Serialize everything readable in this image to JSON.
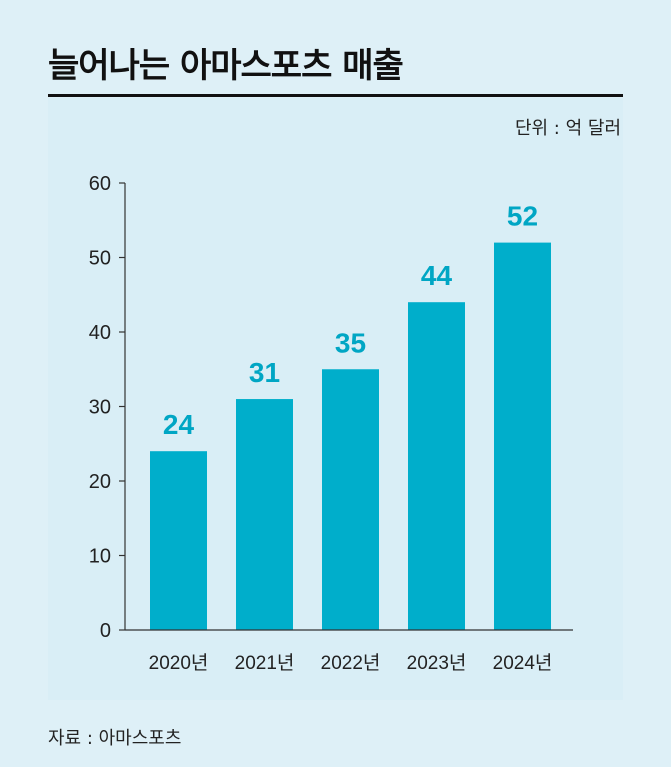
{
  "title": "늘어나는 아마스포츠 매출",
  "unit_label": "단위 : 억 달러",
  "source": "자료 : 아마스포츠",
  "colors": {
    "bar": "#00aecb",
    "value_label": "#00a6c4",
    "axis": "#333333",
    "background": "#def0f7"
  },
  "chart_data": {
    "type": "bar",
    "categories": [
      "2020년",
      "2021년",
      "2022년",
      "2023년",
      "2024년"
    ],
    "values": [
      24,
      31,
      35,
      44,
      52
    ],
    "data_labels": [
      "24",
      "31",
      "35",
      "44",
      "52"
    ],
    "title": "늘어나는 아마스포츠 매출",
    "ylabel": "",
    "xlabel": "",
    "ylim": [
      0,
      60
    ],
    "yticks": [
      0,
      10,
      20,
      30,
      40,
      50,
      60
    ],
    "grid": false
  }
}
